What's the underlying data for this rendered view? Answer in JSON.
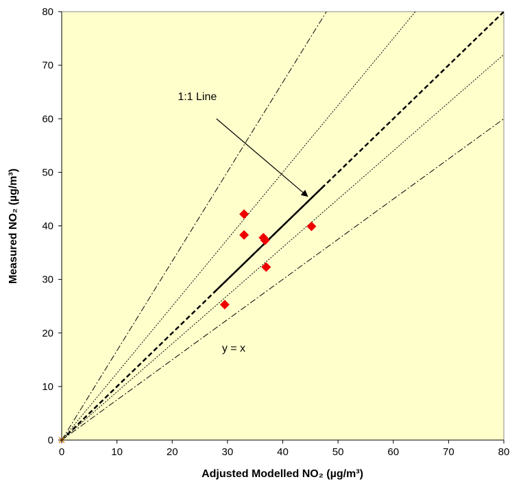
{
  "chart_data": {
    "type": "scatter",
    "title": "",
    "xlabel": "Adjusted Modelled NO₂ (µg/m³)",
    "ylabel": "Measured NO₂ (µg/m³)",
    "xlim": [
      0,
      80
    ],
    "ylim": [
      0,
      80
    ],
    "x_ticks": [
      "0",
      "10",
      "20",
      "30",
      "40",
      "50",
      "60",
      "70",
      "80"
    ],
    "y_ticks": [
      "0",
      "10",
      "20",
      "30",
      "40",
      "50",
      "60",
      "70",
      "80"
    ],
    "grid": false,
    "background_color": "#FFFFCC",
    "series": [
      {
        "color": "#EE0000",
        "marker": "diamond",
        "points": [
          {
            "x": 29.5,
            "y": 25.3
          },
          {
            "x": 33.0,
            "y": 42.2
          },
          {
            "x": 33.0,
            "y": 38.3
          },
          {
            "x": 36.5,
            "y": 37.8
          },
          {
            "x": 36.8,
            "y": 37.3
          },
          {
            "x": 37.0,
            "y": 32.3
          },
          {
            "x": 45.2,
            "y": 39.9
          },
          {
            "x": 0,
            "y": 0
          }
        ]
      }
    ],
    "reference_lines": [
      {
        "slope": 1.0,
        "style": "dashed-bold"
      },
      {
        "slope": 1.25,
        "style": "dotted"
      },
      {
        "slope": 0.9,
        "style": "dotted"
      },
      {
        "slope": 1.67,
        "style": "dash-dot"
      },
      {
        "slope": 0.75,
        "style": "dash-dot"
      }
    ],
    "highlight_segment": {
      "x_start": 27.5,
      "x_end": 47.5,
      "slope": 1.0
    },
    "annotations": [
      {
        "text": "1:1 Line",
        "x": 21,
        "y": 63.5,
        "arrow_from": [
          28,
          60
        ],
        "arrow_to": [
          44.5,
          45.5
        ]
      },
      {
        "text": "y = x",
        "x": 29,
        "y": 16.5
      }
    ]
  }
}
